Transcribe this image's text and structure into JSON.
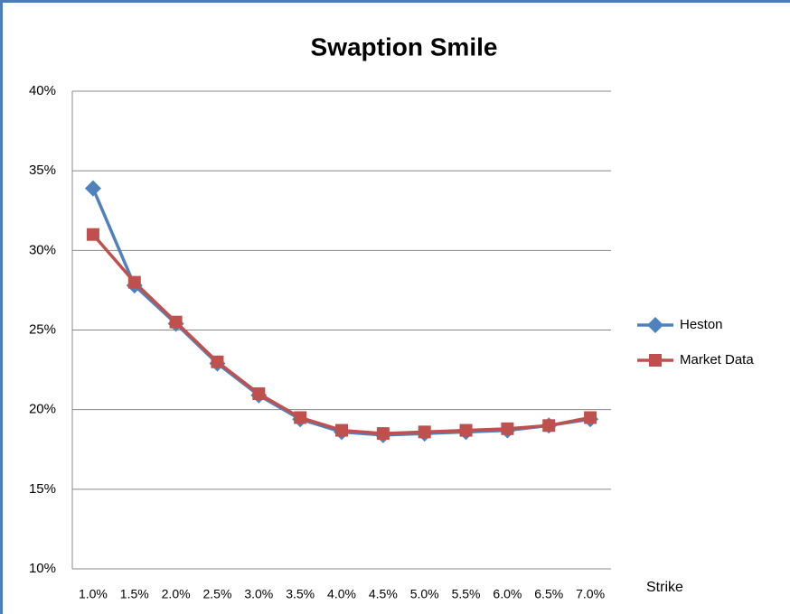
{
  "chart_data": {
    "type": "line",
    "title": "Swaption Smile",
    "x_label": "Strike",
    "categories": [
      "1.0%",
      "1.5%",
      "2.0%",
      "2.5%",
      "3.0%",
      "3.5%",
      "4.0%",
      "4.5%",
      "5.0%",
      "5.5%",
      "6.0%",
      "6.5%",
      "7.0%"
    ],
    "series": [
      {
        "name": "Heston",
        "color": "#4f81bd",
        "marker": "diamond",
        "values": [
          33.9,
          27.8,
          25.4,
          22.9,
          20.9,
          19.4,
          18.6,
          18.4,
          18.5,
          18.6,
          18.7,
          19.0,
          19.4
        ]
      },
      {
        "name": "Market Data",
        "color": "#c0504d",
        "marker": "square",
        "values": [
          31.0,
          28.0,
          25.5,
          23.0,
          21.0,
          19.5,
          18.7,
          18.5,
          18.6,
          18.7,
          18.8,
          19.0,
          19.5
        ]
      }
    ],
    "ylim": [
      10,
      40
    ],
    "yticks": [
      {
        "value": 10,
        "label": "10%"
      },
      {
        "value": 15,
        "label": "15%"
      },
      {
        "value": 20,
        "label": "20%"
      },
      {
        "value": 25,
        "label": "25%"
      },
      {
        "value": 30,
        "label": "30%"
      },
      {
        "value": 35,
        "label": "35%"
      },
      {
        "value": 40,
        "label": "40%"
      }
    ],
    "grid": true,
    "legend": "right"
  }
}
